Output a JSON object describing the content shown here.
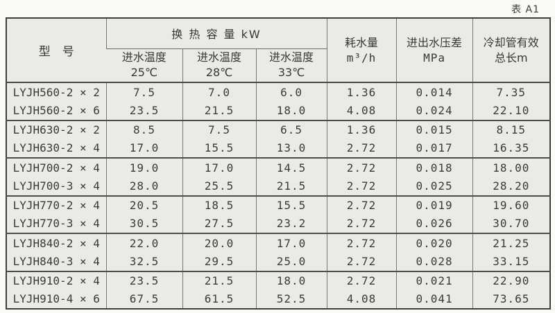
{
  "table_label": "表 A1",
  "header": {
    "model": "型　号",
    "capacity": "换 热 容 量 kW",
    "temp_cols": [
      {
        "line1": "进水温度",
        "line2": "25℃"
      },
      {
        "line1": "进水温度",
        "line2": "28℃"
      },
      {
        "line1": "进水温度",
        "line2": "33℃"
      }
    ],
    "water_consumption": {
      "line1": "耗水量",
      "line2": "m³/h"
    },
    "pressure_diff": {
      "line1": "进出水压差",
      "line2": "MPa"
    },
    "pipe_length": {
      "line1": "冷却管有效",
      "line2": "总长m"
    }
  },
  "rows": [
    {
      "model": "LYJH560-2 × 2",
      "values": [
        "7.5",
        "7.0",
        "6.0",
        "1.36",
        "0.014",
        "7.35"
      ]
    },
    {
      "model": "LYJH560-2 × 6",
      "values": [
        "23.5",
        "21.5",
        "18.0",
        "4.08",
        "0.024",
        "22.10"
      ]
    },
    {
      "model": "LYJH630-2 × 2",
      "values": [
        "8.5",
        "7.5",
        "6.5",
        "1.36",
        "0.015",
        "8.15"
      ]
    },
    {
      "model": "LYJH630-2 × 4",
      "values": [
        "17.0",
        "15.5",
        "13.0",
        "2.72",
        "0.017",
        "16.35"
      ]
    },
    {
      "model": "LYJH700-2 × 4",
      "values": [
        "19.0",
        "17.0",
        "14.5",
        "2.72",
        "0.018",
        "18.00"
      ]
    },
    {
      "model": "LYJH700-3 × 4",
      "values": [
        "28.0",
        "25.5",
        "21.5",
        "2.72",
        "0.025",
        "28.20"
      ]
    },
    {
      "model": "LYJH770-2 × 4",
      "values": [
        "20.5",
        "18.5",
        "15.5",
        "2.72",
        "0.019",
        "19.60"
      ]
    },
    {
      "model": "LYJH770-3 × 4",
      "values": [
        "30.5",
        "27.5",
        "23.2",
        "2.72",
        "0.026",
        "30.70"
      ]
    },
    {
      "model": "LYJH840-2 × 4",
      "values": [
        "22.0",
        "20.0",
        "17.0",
        "2.72",
        "0.020",
        "21.25"
      ]
    },
    {
      "model": "LYJH840-3 × 4",
      "values": [
        "32.5",
        "29.5",
        "25.0",
        "2.72",
        "0.028",
        "33.15"
      ]
    },
    {
      "model": "LYJH910-2 × 4",
      "values": [
        "23.5",
        "21.5",
        "18.0",
        "2.72",
        "0.021",
        "22.90"
      ]
    },
    {
      "model": "LYJH910-4 × 6",
      "values": [
        "67.5",
        "61.5",
        "52.5",
        "4.08",
        "0.041",
        "73.65"
      ]
    }
  ],
  "colors": {
    "page_background": "#fafaf8",
    "table_background": "#eaeae8",
    "outer_border": "#3d3d3b",
    "inner_line": "#757573",
    "text": "#333331"
  }
}
